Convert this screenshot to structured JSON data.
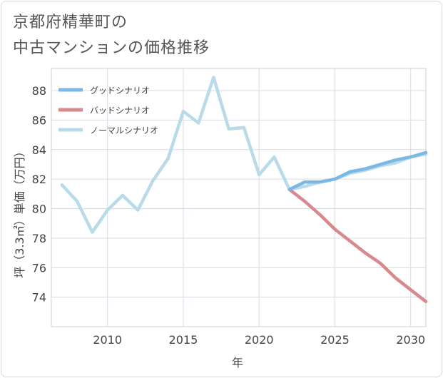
{
  "title_lines": [
    "京都府精華町の",
    "中古マンションの価格推移"
  ],
  "chart_data": {
    "type": "line",
    "xlabel": "年",
    "ylabel": "坪（3.3㎡）単価（万円）",
    "xlim": [
      2006.3,
      2031
    ],
    "ylim": [
      72,
      89.5
    ],
    "x_ticks": [
      2010,
      2015,
      2020,
      2025,
      2030
    ],
    "y_ticks": [
      74,
      76,
      78,
      80,
      82,
      84,
      86,
      88
    ],
    "grid": true,
    "legend_position": "top-left",
    "series": [
      {
        "name": "グッドシナリオ",
        "color": "#7ab8e6",
        "x": [
          2022,
          2023,
          2024,
          2025,
          2026,
          2027,
          2028,
          2029,
          2030,
          2031
        ],
        "y": [
          81.3,
          81.8,
          81.8,
          82.0,
          82.5,
          82.7,
          83.0,
          83.3,
          83.5,
          83.8
        ]
      },
      {
        "name": "バッドシナリオ",
        "color": "#d98890",
        "x": [
          2022,
          2023,
          2024,
          2025,
          2026,
          2027,
          2028,
          2029,
          2030,
          2031
        ],
        "y": [
          81.3,
          80.5,
          79.6,
          78.6,
          77.8,
          77.0,
          76.3,
          75.3,
          74.5,
          73.7
        ]
      },
      {
        "name": "ノーマルシナリオ",
        "color": "#b9dbe9",
        "x": [
          2007,
          2008,
          2009,
          2010,
          2011,
          2012,
          2013,
          2014,
          2015,
          2016,
          2017,
          2018,
          2019,
          2020,
          2021,
          2022,
          2023,
          2024,
          2025,
          2026,
          2027,
          2028,
          2029,
          2030,
          2031
        ],
        "y": [
          81.6,
          80.5,
          78.4,
          79.9,
          80.9,
          79.9,
          81.9,
          83.4,
          86.6,
          85.8,
          88.9,
          85.4,
          85.5,
          82.3,
          83.5,
          81.3,
          81.5,
          81.8,
          82.0,
          82.4,
          82.6,
          82.9,
          83.1,
          83.5,
          83.7
        ]
      }
    ]
  }
}
